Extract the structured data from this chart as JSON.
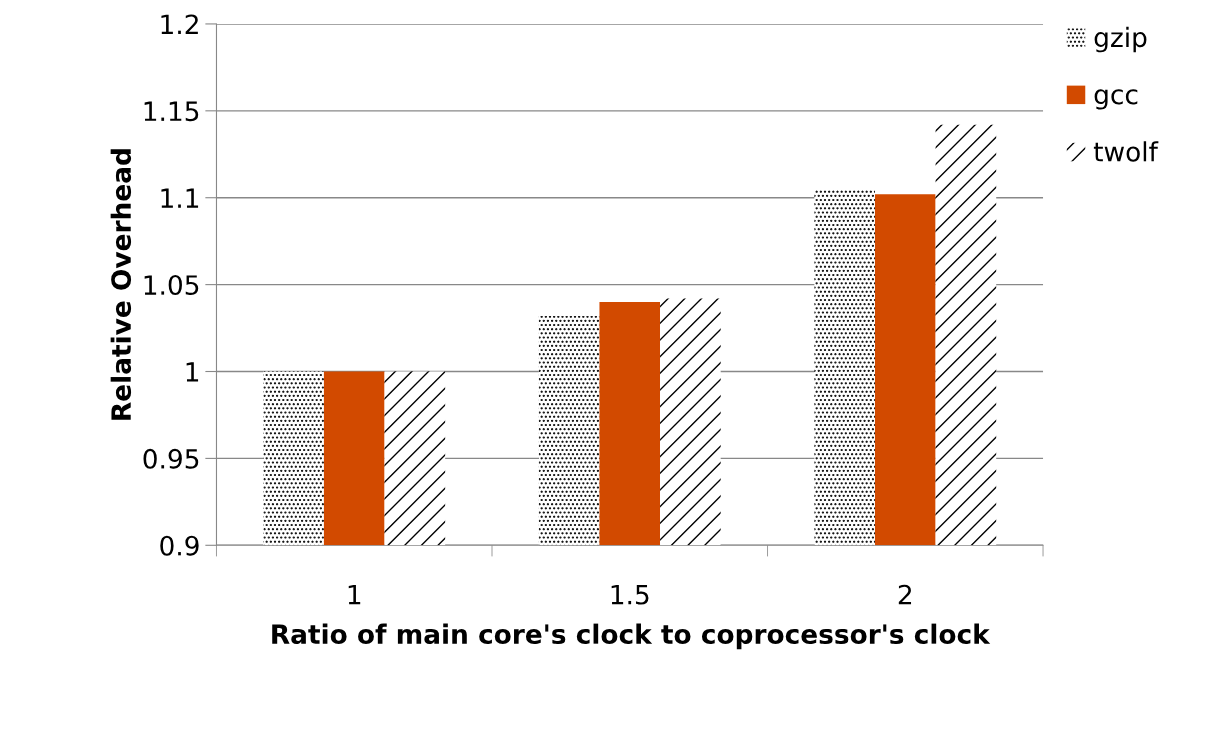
{
  "chart_data": {
    "type": "bar",
    "xlabel": "Ratio of main core's clock to coprocessor's clock",
    "ylabel": "Relative Overhead",
    "categories": [
      "1",
      "1.5",
      "2"
    ],
    "series": [
      {
        "name": "gzip",
        "color": "#000000",
        "values": [
          1.0,
          1.032,
          1.105
        ]
      },
      {
        "name": "gcc",
        "color": "#d24a00",
        "values": [
          1.0,
          1.04,
          1.102
        ]
      },
      {
        "name": "twolf",
        "color": "#000000",
        "values": [
          1.0,
          1.042,
          1.142
        ]
      }
    ],
    "ylim": [
      0.9,
      1.2
    ],
    "yticks": [
      {
        "value": 0.9,
        "label": "0.9"
      },
      {
        "value": 0.95,
        "label": "0.95"
      },
      {
        "value": 1,
        "label": "1"
      },
      {
        "value": 1.05,
        "label": "1.05"
      },
      {
        "value": 1.1,
        "label": "1.1"
      },
      {
        "value": 1.15,
        "label": "1.15"
      },
      {
        "value": 1.2,
        "label": "1.2"
      }
    ],
    "grid": "y",
    "legend": "top right"
  }
}
